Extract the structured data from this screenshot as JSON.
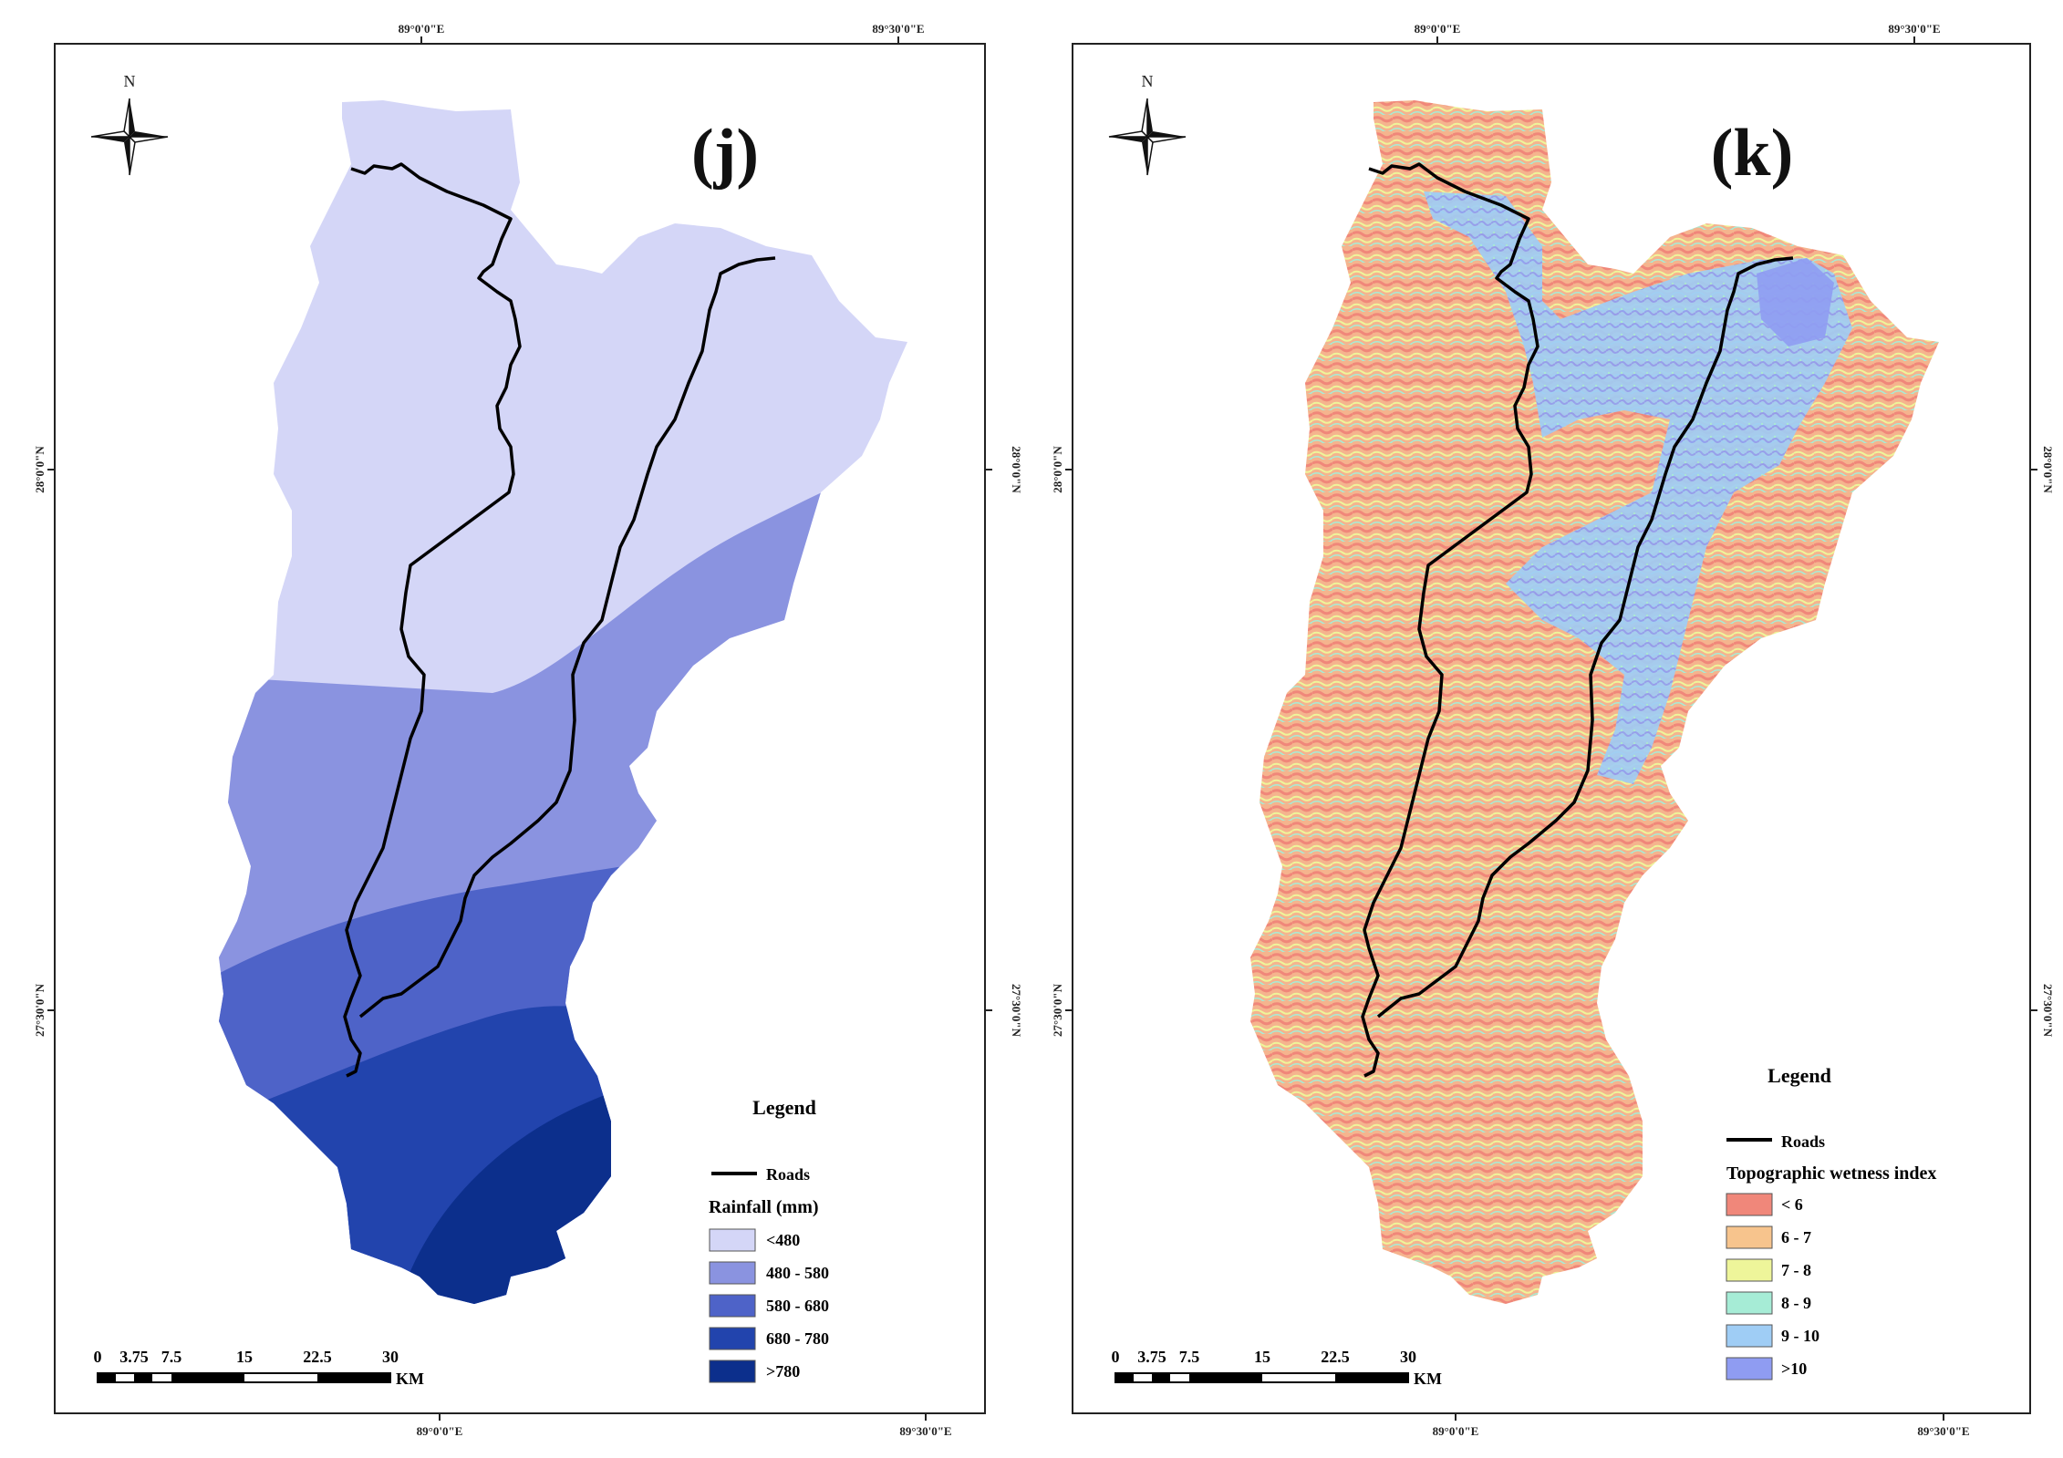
{
  "panels": [
    {
      "id": "j",
      "label": "(j)",
      "graticule": {
        "top_labels": [
          "89°0'0\"E",
          "89°30'0\"E"
        ],
        "bottom_labels": [
          "89°0'0\"E",
          "89°30'0\"E"
        ],
        "left_labels": [
          "28°0'0\"N",
          "27°30'0\"N"
        ],
        "right_labels": [
          "28°0'0\"N",
          "27°30'0\"N"
        ]
      },
      "north_label": "N",
      "scale_bar": {
        "ticks": [
          "0",
          "3.75",
          "7.5",
          "15",
          "22.5",
          "30"
        ],
        "unit": "KM"
      },
      "legend": {
        "title": "Legend",
        "roads_label": "Roads",
        "section_title": "Rainfall (mm)",
        "classes": [
          {
            "label": "<480",
            "color": "#d4d6f7"
          },
          {
            "label": "480 - 580",
            "color": "#8a93e0"
          },
          {
            "label": "580 - 680",
            "color": "#4e63c8"
          },
          {
            "label": "680 - 780",
            "color": "#2244ad"
          },
          {
            "label": ">780",
            "color": "#0c2f8c"
          }
        ]
      }
    },
    {
      "id": "k",
      "label": "(k)",
      "graticule": {
        "top_labels": [
          "89°0'0\"E",
          "89°30'0\"E"
        ],
        "bottom_labels": [
          "89°0'0\"E",
          "89°30'0\"E"
        ],
        "left_labels": [
          "28°0'0\"N",
          "27°30'0\"N"
        ],
        "right_labels": [
          "28°0'0\"N",
          "27°30'0\"N"
        ]
      },
      "north_label": "N",
      "scale_bar": {
        "ticks": [
          "0",
          "3.75",
          "7.5",
          "15",
          "22.5",
          "30"
        ],
        "unit": "KM"
      },
      "legend": {
        "title": "Legend",
        "roads_label": "Roads",
        "section_title": "Topographic wetness index",
        "classes": [
          {
            "label": "< 6",
            "color": "#f0877a"
          },
          {
            "label": "6 - 7",
            "color": "#f7c48d"
          },
          {
            "label": "7 - 8",
            "color": "#eef59a"
          },
          {
            "label": "8 - 9",
            "color": "#a6ecd6"
          },
          {
            "label": "9 - 10",
            "color": "#9fcdf5"
          },
          {
            "label": ">10",
            "color": "#8f9cf2"
          }
        ]
      }
    }
  ]
}
